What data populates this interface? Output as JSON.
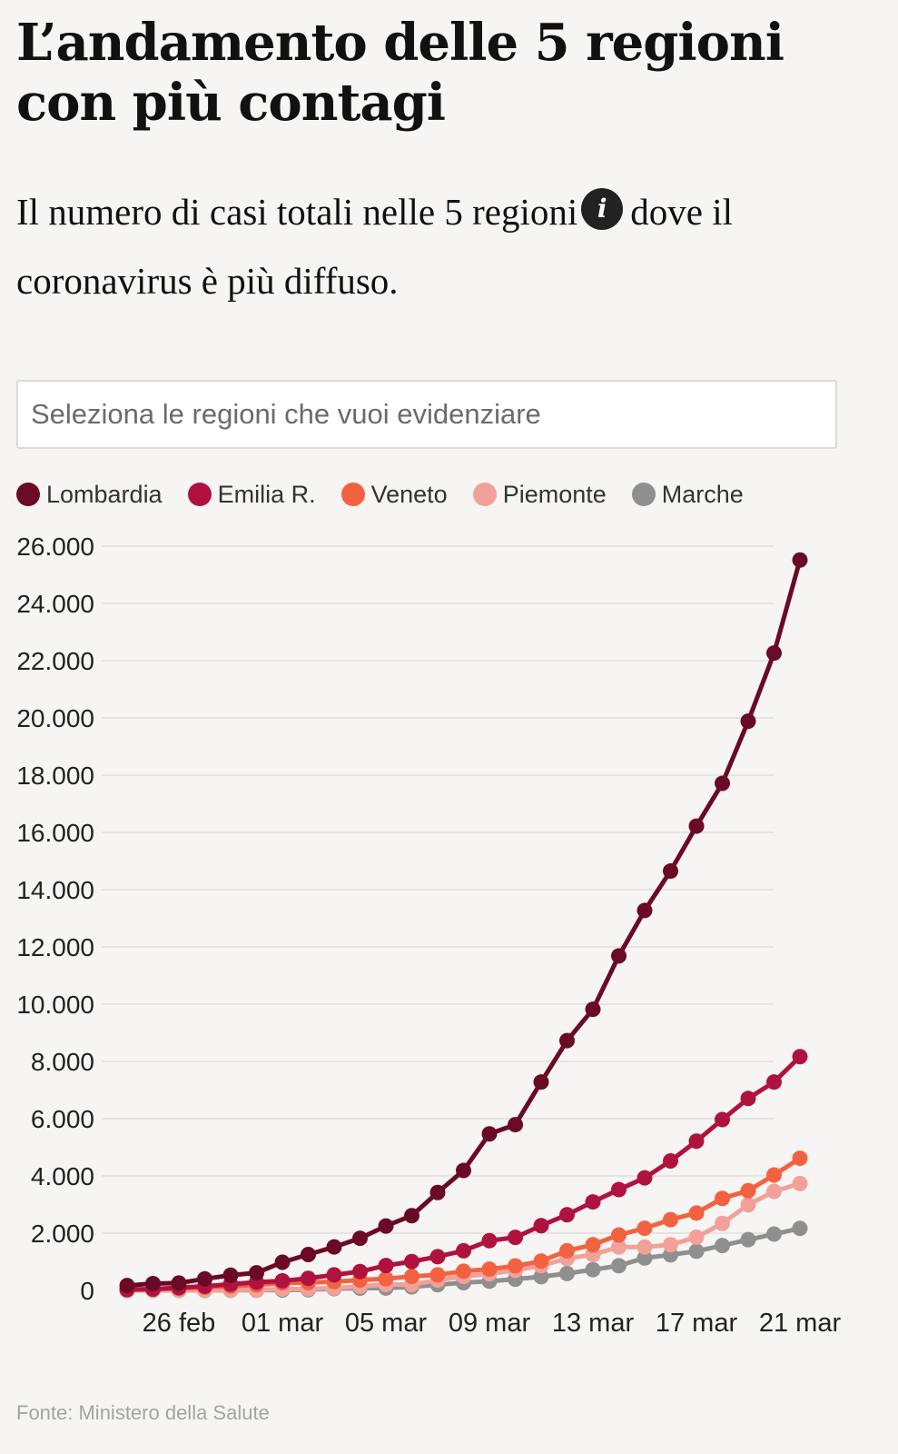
{
  "header": {
    "title": "L’andamento delle 5 regioni con più contagi",
    "subtitle_part1": "Il numero di casi totali nelle 5 regioni",
    "subtitle_part2": "dove il coronavirus è più diffuso.",
    "info_icon": "i"
  },
  "search": {
    "placeholder": "Seleziona le regioni che vuoi evidenziare"
  },
  "legend": [
    {
      "label": "Lombardia",
      "color": "#6b0a25"
    },
    {
      "label": "Emilia R.",
      "color": "#b0123f"
    },
    {
      "label": "Veneto",
      "color": "#f26241"
    },
    {
      "label": "Piemonte",
      "color": "#f2a19a"
    },
    {
      "label": "Marche",
      "color": "#8f8f8f"
    }
  ],
  "source": "Fonte: Ministero della Salute",
  "chart_data": {
    "type": "line",
    "x_start": "2020-02-24",
    "x": [
      "24 feb",
      "25 feb",
      "26 feb",
      "27 feb",
      "28 feb",
      "29 feb",
      "01 mar",
      "02 mar",
      "03 mar",
      "04 mar",
      "05 mar",
      "06 mar",
      "07 mar",
      "08 mar",
      "09 mar",
      "10 mar",
      "11 mar",
      "12 mar",
      "13 mar",
      "14 mar",
      "15 mar",
      "16 mar",
      "17 mar",
      "18 mar",
      "19 mar",
      "20 mar",
      "21 mar"
    ],
    "xticks": [
      {
        "label": "26 feb",
        "index": 2
      },
      {
        "label": "01 mar",
        "index": 6
      },
      {
        "label": "05 mar",
        "index": 10
      },
      {
        "label": "09 mar",
        "index": 14
      },
      {
        "label": "13 mar",
        "index": 18
      },
      {
        "label": "17 mar",
        "index": 22
      },
      {
        "label": "21 mar",
        "index": 26
      }
    ],
    "yticks": [
      0,
      2000,
      4000,
      6000,
      8000,
      10000,
      12000,
      14000,
      16000,
      18000,
      20000,
      22000,
      24000,
      26000
    ],
    "ytick_labels": [
      "0",
      "2.000",
      "4.000",
      "6.000",
      "8.000",
      "10.000",
      "12.000",
      "14.000",
      "16.000",
      "18.000",
      "20.000",
      "22.000",
      "24.000",
      "26.000"
    ],
    "ylim": [
      0,
      26000
    ],
    "grid": true,
    "series": [
      {
        "name": "Marche",
        "color": "#8f8f8f",
        "values": [
          0,
          0,
          0,
          1,
          3,
          6,
          11,
          25,
          61,
          79,
          84,
          123,
          199,
          271,
          323,
          394,
          479,
          592,
          724,
          863,
          1133,
          1242,
          1371,
          1568,
          1773,
          1968,
          2166
        ]
      },
      {
        "name": "Piemonte",
        "color": "#f2a19a",
        "values": [
          3,
          3,
          3,
          3,
          11,
          11,
          49,
          56,
          82,
          143,
          207,
          207,
          360,
          489,
          584,
          702,
          864,
          1111,
          1252,
          1516,
          1516,
          1597,
          1857,
          2341,
          2992,
          3461,
          3735
        ]
      },
      {
        "name": "Veneto",
        "color": "#f26241",
        "values": [
          32,
          43,
          71,
          111,
          151,
          191,
          263,
          273,
          307,
          360,
          407,
          488,
          543,
          670,
          744,
          856,
          1023,
          1384,
          1595,
          1937,
          2172,
          2473,
          2704,
          3214,
          3484,
          4031,
          4617
        ]
      },
      {
        "name": "Emilia R.",
        "color": "#b0123f",
        "values": [
          26,
          47,
          97,
          145,
          217,
          285,
          335,
          420,
          544,
          658,
          870,
          1008,
          1180,
          1386,
          1739,
          1853,
          2263,
          2644,
          3093,
          3522,
          3931,
          4525,
          5214,
          5968,
          6705,
          7280,
          8166
        ]
      },
      {
        "name": "Lombardia",
        "color": "#6b0a25",
        "values": [
          172,
          240,
          258,
          403,
          531,
          615,
          984,
          1254,
          1520,
          1820,
          2251,
          2612,
          3420,
          4189,
          5469,
          5791,
          7280,
          8725,
          9820,
          11685,
          13272,
          14649,
          16220,
          17713,
          19884,
          22264,
          25515
        ]
      }
    ]
  }
}
